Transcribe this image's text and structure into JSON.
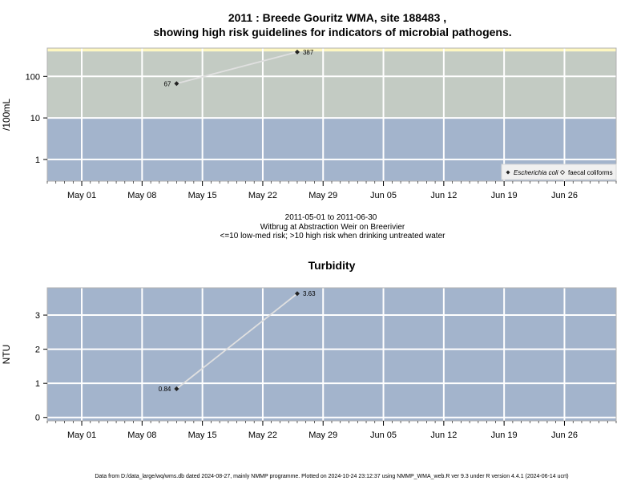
{
  "chart_data": [
    {
      "type": "line",
      "title_line1": "2011 : Breede Gouritz WMA, site 188483 ,",
      "title_line2": "showing high risk guidelines for indicators of microbial pathogens.",
      "ylabel": "/100mL",
      "y_scale": "log",
      "ylim": [
        0.3,
        480
      ],
      "y_ticks": [
        {
          "value": 1,
          "label": "1"
        },
        {
          "value": 10,
          "label": "10"
        },
        {
          "value": 100,
          "label": "100"
        }
      ],
      "xlim": [
        "2011-04-27",
        "2011-07-02"
      ],
      "x_ticks": [
        {
          "date": "2011-05-01",
          "label": "May 01"
        },
        {
          "date": "2011-05-08",
          "label": "May 08"
        },
        {
          "date": "2011-05-15",
          "label": "May 15"
        },
        {
          "date": "2011-05-22",
          "label": "May 22"
        },
        {
          "date": "2011-05-29",
          "label": "May 29"
        },
        {
          "date": "2011-06-05",
          "label": "Jun 05"
        },
        {
          "date": "2011-06-12",
          "label": "Jun 12"
        },
        {
          "date": "2011-06-19",
          "label": "Jun 19"
        },
        {
          "date": "2011-06-26",
          "label": "Jun 26"
        }
      ],
      "bands": [
        {
          "from": 0.3,
          "to": 10,
          "color": "#a3b4cc"
        },
        {
          "from": 10,
          "to": 400,
          "color": "#c3cbc3"
        },
        {
          "from": 400,
          "to": 480,
          "color": "#fef7c0"
        }
      ],
      "series": [
        {
          "name": "Escherichia coli",
          "marker": "filled-diamond",
          "points": [
            {
              "x": "2011-05-12",
              "y": 67,
              "label": "67"
            },
            {
              "x": "2011-05-26",
              "y": 387,
              "label": "387"
            }
          ]
        }
      ],
      "legend": {
        "position": "bottom-right",
        "entries": [
          {
            "label": "Escherichia coli",
            "marker": "filled-diamond"
          },
          {
            "label": "faecal coliforms",
            "marker": "open-diamond"
          }
        ]
      },
      "captions": [
        "2011-05-01 to 2011-06-30",
        "Witbrug at Abstraction Weir on Breerivier",
        "<=10 low-med risk; >10 high risk when drinking untreated water"
      ]
    },
    {
      "type": "line",
      "title": "Turbidity",
      "ylabel": "NTU",
      "ylim": [
        -0.1,
        3.8
      ],
      "y_ticks": [
        {
          "value": 0,
          "label": "0"
        },
        {
          "value": 1,
          "label": "1"
        },
        {
          "value": 2,
          "label": "2"
        },
        {
          "value": 3,
          "label": "3"
        }
      ],
      "xlim": [
        "2011-04-27",
        "2011-07-02"
      ],
      "x_ticks": [
        {
          "date": "2011-05-01",
          "label": "May 01"
        },
        {
          "date": "2011-05-08",
          "label": "May 08"
        },
        {
          "date": "2011-05-15",
          "label": "May 15"
        },
        {
          "date": "2011-05-22",
          "label": "May 22"
        },
        {
          "date": "2011-05-29",
          "label": "May 29"
        },
        {
          "date": "2011-06-05",
          "label": "Jun 05"
        },
        {
          "date": "2011-06-12",
          "label": "Jun 12"
        },
        {
          "date": "2011-06-19",
          "label": "Jun 19"
        },
        {
          "date": "2011-06-26",
          "label": "Jun 26"
        }
      ],
      "background": "#a3b4cc",
      "series": [
        {
          "marker": "filled-diamond",
          "points": [
            {
              "x": "2011-05-12",
              "y": 0.84,
              "label": "0.84"
            },
            {
              "x": "2011-05-26",
              "y": 3.63,
              "label": "3.63"
            }
          ]
        }
      ]
    }
  ],
  "footer": "Data from D:/data_large/wq/wms.db dated 2024-08-27, mainly NMMP programme. Plotted on 2024-10-24 23:12:37 using NMMP_WMA_web.R ver 9.3 under R version 4.4.1 (2024-06-14 ucrt)"
}
